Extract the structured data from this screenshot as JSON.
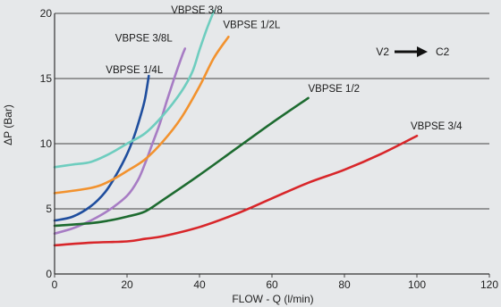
{
  "chart_data": {
    "type": "line",
    "title": "",
    "xlabel": "FLOW - Q (l/min)",
    "ylabel": "ΔP (Bar)",
    "xlim": [
      0,
      120
    ],
    "ylim": [
      0,
      20
    ],
    "x_ticks": [
      "0",
      "20",
      "40",
      "60",
      "80",
      "100",
      "120"
    ],
    "y_ticks": [
      "0",
      "5",
      "10",
      "15",
      "20"
    ],
    "grid": "horizontal",
    "annotation": {
      "from": "V2",
      "to": "C2"
    },
    "series": [
      {
        "name": "VBPSE 1/4L",
        "color": "#1f4e9e",
        "points": [
          [
            0,
            4.1
          ],
          [
            5,
            4.4
          ],
          [
            10,
            5.2
          ],
          [
            14,
            6.3
          ],
          [
            17,
            7.6
          ],
          [
            20,
            9.2
          ],
          [
            22,
            10.6
          ],
          [
            24,
            12.4
          ],
          [
            25,
            13.5
          ],
          [
            26,
            15.2
          ]
        ]
      },
      {
        "name": "VBPSE 3/8L",
        "color": "#a77cc4",
        "points": [
          [
            0,
            3.1
          ],
          [
            5,
            3.5
          ],
          [
            10,
            4.1
          ],
          [
            15,
            4.9
          ],
          [
            20,
            6.0
          ],
          [
            23,
            7.2
          ],
          [
            25,
            8.5
          ],
          [
            27,
            10.0
          ],
          [
            29,
            11.5
          ],
          [
            31,
            13.3
          ],
          [
            33,
            15.0
          ],
          [
            35,
            16.6
          ],
          [
            36,
            17.3
          ]
        ]
      },
      {
        "name": "VBPSE 3/8",
        "color": "#6ecdbf",
        "points": [
          [
            0,
            8.2
          ],
          [
            5,
            8.4
          ],
          [
            10,
            8.6
          ],
          [
            15,
            9.2
          ],
          [
            20,
            10.0
          ],
          [
            25,
            10.8
          ],
          [
            30,
            12.2
          ],
          [
            35,
            14.0
          ],
          [
            38,
            15.5
          ],
          [
            40,
            17.2
          ],
          [
            42,
            18.8
          ],
          [
            44,
            20.2
          ]
        ]
      },
      {
        "name": "VBPSE 1/2L",
        "color": "#f2922e",
        "points": [
          [
            0,
            6.2
          ],
          [
            10,
            6.6
          ],
          [
            15,
            7.1
          ],
          [
            20,
            7.9
          ],
          [
            25,
            8.8
          ],
          [
            30,
            10.2
          ],
          [
            35,
            12.0
          ],
          [
            40,
            14.4
          ],
          [
            44,
            16.6
          ],
          [
            48,
            18.2
          ]
        ]
      },
      {
        "name": "VBPSE 1/2",
        "color": "#1d6b30",
        "points": [
          [
            0,
            3.7
          ],
          [
            10,
            3.9
          ],
          [
            15,
            4.1
          ],
          [
            20,
            4.4
          ],
          [
            25,
            4.8
          ],
          [
            30,
            5.7
          ],
          [
            40,
            7.6
          ],
          [
            50,
            9.6
          ],
          [
            60,
            11.6
          ],
          [
            70,
            13.5
          ]
        ]
      },
      {
        "name": "VBPSE 3/4",
        "color": "#d8262a",
        "points": [
          [
            0,
            2.2
          ],
          [
            10,
            2.4
          ],
          [
            20,
            2.5
          ],
          [
            25,
            2.7
          ],
          [
            30,
            2.9
          ],
          [
            40,
            3.6
          ],
          [
            50,
            4.6
          ],
          [
            60,
            5.8
          ],
          [
            70,
            7.0
          ],
          [
            80,
            8.0
          ],
          [
            90,
            9.2
          ],
          [
            100,
            10.6
          ]
        ]
      }
    ]
  }
}
